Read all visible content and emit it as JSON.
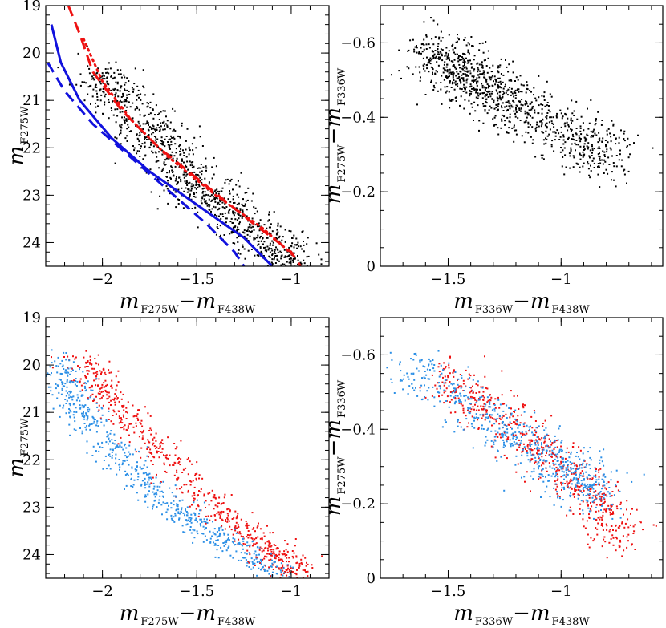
{
  "colors": {
    "red": "#ee1111",
    "blue": "#1111dd",
    "lightblue": "#2b8fe6",
    "black": "#000000"
  },
  "chart_data": [
    {
      "id": "top-left",
      "type": "scatter",
      "xlabel": {
        "main": "m",
        "sub1": "F275W",
        "minus": "−m",
        "sub2": "F438W"
      },
      "ylabel": {
        "main": "m",
        "sub": "F275W"
      },
      "xlim": [
        -2.3,
        -0.8
      ],
      "ylim": [
        24.5,
        19.0
      ],
      "xticks": [
        -2,
        -1.5,
        -1
      ],
      "xtick_labels": [
        "−2",
        "−1.5",
        "−1"
      ],
      "yticks": [
        19,
        20,
        21,
        22,
        23,
        24
      ],
      "ytick_labels": [
        "19",
        "20",
        "21",
        "22",
        "23",
        "24"
      ],
      "x_minor": 0.1,
      "y_minor": 0.2,
      "series": [
        {
          "kind": "scatter",
          "color": "black",
          "ridges": [
            {
              "x": -2.02,
              "y": 20.4
            },
            {
              "x": -1.55,
              "y": 22.6
            },
            {
              "x": -1.0,
              "y": 24.45
            }
          ],
          "n": 1100,
          "spread": 0.09
        }
      ],
      "lines": [
        {
          "color": "red",
          "style": "dashed",
          "points": [
            [
              -2.18,
              19.0
            ],
            [
              -2.12,
              19.6
            ],
            [
              -2.05,
              20.4
            ],
            [
              -1.9,
              21.2
            ],
            [
              -1.7,
              22.0
            ],
            [
              -1.45,
              22.8
            ],
            [
              -1.2,
              23.6
            ],
            [
              -1.0,
              24.2
            ],
            [
              -0.95,
              24.5
            ]
          ]
        },
        {
          "color": "red",
          "style": "dotted",
          "points": [
            [
              -2.1,
              19.7
            ],
            [
              -2.0,
              20.6
            ],
            [
              -1.85,
              21.4
            ],
            [
              -1.65,
              22.2
            ],
            [
              -1.4,
              23.0
            ],
            [
              -1.15,
              23.7
            ],
            [
              -0.98,
              24.3
            ]
          ]
        },
        {
          "color": "blue",
          "style": "solid",
          "points": [
            [
              -2.27,
              19.4
            ],
            [
              -2.22,
              20.2
            ],
            [
              -2.12,
              21.0
            ],
            [
              -1.95,
              21.8
            ],
            [
              -1.75,
              22.5
            ],
            [
              -1.5,
              23.2
            ],
            [
              -1.25,
              23.9
            ],
            [
              -1.1,
              24.5
            ]
          ]
        },
        {
          "color": "blue",
          "style": "dashed",
          "points": [
            [
              -2.29,
              20.2
            ],
            [
              -2.2,
              20.8
            ],
            [
              -2.05,
              21.5
            ],
            [
              -1.85,
              22.2
            ],
            [
              -1.65,
              22.9
            ],
            [
              -1.45,
              23.6
            ],
            [
              -1.3,
              24.2
            ],
            [
              -1.25,
              24.5
            ]
          ]
        }
      ]
    },
    {
      "id": "top-right",
      "type": "scatter",
      "xlabel": {
        "main": "m",
        "sub1": "F336W",
        "minus": "−m",
        "sub2": "F438W"
      },
      "ylabel": {
        "main": "m",
        "sub1": "F275W",
        "minus": "−m",
        "sub2": "F336W"
      },
      "xlim": [
        -1.8,
        -0.55
      ],
      "ylim": [
        0,
        -0.7
      ],
      "xticks": [
        -1.5,
        -1
      ],
      "xtick_labels": [
        "−1.5",
        "−1"
      ],
      "yticks": [
        0,
        -0.2,
        -0.4,
        -0.6
      ],
      "ytick_labels": [
        "0",
        "−0.2",
        "−0.4",
        "−0.6"
      ],
      "x_minor": 0.1,
      "y_minor": 0.05,
      "series": [
        {
          "kind": "scatter",
          "color": "black",
          "ridges": [
            {
              "x": -1.6,
              "y": -0.58
            },
            {
              "x": -1.25,
              "y": -0.45
            },
            {
              "x": -0.75,
              "y": -0.28
            }
          ],
          "n": 1050,
          "spread": 0.05
        }
      ]
    },
    {
      "id": "bottom-left",
      "type": "scatter",
      "xlabel": {
        "main": "m",
        "sub1": "F275W",
        "minus": "−m",
        "sub2": "F438W"
      },
      "ylabel": {
        "main": "m",
        "sub": "F275W"
      },
      "xlim": [
        -2.3,
        -0.8
      ],
      "ylim": [
        24.5,
        19.0
      ],
      "xticks": [
        -2,
        -1.5,
        -1
      ],
      "xtick_labels": [
        "−2",
        "−1.5",
        "−1"
      ],
      "yticks": [
        19,
        20,
        21,
        22,
        23,
        24
      ],
      "ytick_labels": [
        "19",
        "20",
        "21",
        "22",
        "23",
        "24"
      ],
      "x_minor": 0.1,
      "y_minor": 0.2,
      "series": [
        {
          "kind": "scatter",
          "color": "red",
          "ridges": [
            {
              "x": -2.12,
              "y": 19.8
            },
            {
              "x": -1.9,
              "y": 21.0
            },
            {
              "x": -1.55,
              "y": 22.5
            },
            {
              "x": -1.2,
              "y": 23.7
            },
            {
              "x": -0.95,
              "y": 24.4
            }
          ],
          "n": 650,
          "spread": 0.06
        },
        {
          "kind": "scatter",
          "color": "lightblue",
          "ridges": [
            {
              "x": -2.25,
              "y": 19.8
            },
            {
              "x": -2.08,
              "y": 21.2
            },
            {
              "x": -1.75,
              "y": 22.6
            },
            {
              "x": -1.4,
              "y": 23.6
            },
            {
              "x": -1.05,
              "y": 24.45
            }
          ],
          "n": 650,
          "spread": 0.06
        }
      ]
    },
    {
      "id": "bottom-right",
      "type": "scatter",
      "xlabel": {
        "main": "m",
        "sub1": "F336W",
        "minus": "−m",
        "sub2": "F438W"
      },
      "ylabel": {
        "main": "m",
        "sub1": "F275W",
        "minus": "−m",
        "sub2": "F336W"
      },
      "xlim": [
        -1.8,
        -0.55
      ],
      "ylim": [
        0,
        -0.7
      ],
      "xticks": [
        -1.5,
        -1
      ],
      "xtick_labels": [
        "−1.5",
        "−1"
      ],
      "yticks": [
        0,
        -0.2,
        -0.4,
        -0.6
      ],
      "ytick_labels": [
        "0",
        "−0.2",
        "−0.4",
        "−0.6"
      ],
      "x_minor": 0.1,
      "y_minor": 0.05,
      "series": [
        {
          "kind": "scatter",
          "color": "red",
          "ridges": [
            {
              "x": -1.55,
              "y": -0.55
            },
            {
              "x": -1.2,
              "y": -0.4
            },
            {
              "x": -0.9,
              "y": -0.25
            },
            {
              "x": -0.7,
              "y": -0.1
            }
          ],
          "n": 650,
          "spread": 0.045
        },
        {
          "kind": "scatter",
          "color": "lightblue",
          "ridges": [
            {
              "x": -1.68,
              "y": -0.57
            },
            {
              "x": -1.3,
              "y": -0.42
            },
            {
              "x": -1.0,
              "y": -0.3
            },
            {
              "x": -0.8,
              "y": -0.22
            }
          ],
          "n": 650,
          "spread": 0.045
        }
      ]
    }
  ]
}
